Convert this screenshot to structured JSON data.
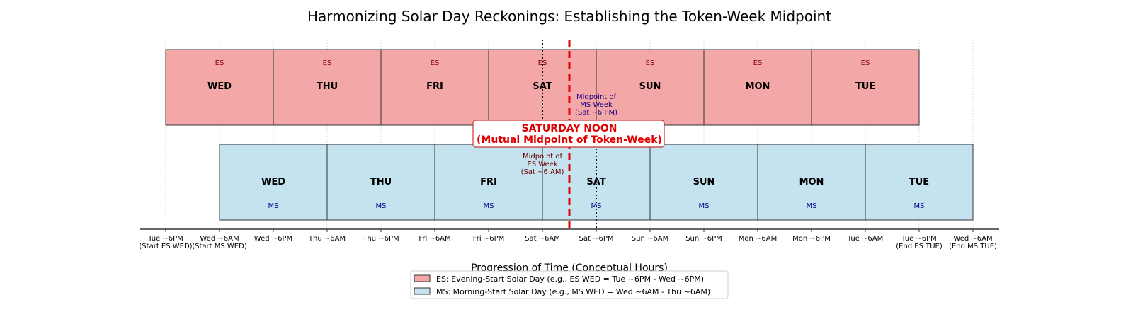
{
  "chart_data": {
    "type": "timeline",
    "title": "Harmonizing Solar Day Reckonings: Establishing the Token-Week Midpoint",
    "xlabel": "Progression of Time (Conceptual Hours)",
    "x_unit": "hours since Tue ~6PM",
    "xlim": [
      0,
      180
    ],
    "ticks": [
      {
        "hour": 0,
        "label": "Tue ~6PM",
        "sublabel": "(Start ES WED)"
      },
      {
        "hour": 12,
        "label": "Wed ~6AM",
        "sublabel": "(Start MS WED)"
      },
      {
        "hour": 24,
        "label": "Wed ~6PM"
      },
      {
        "hour": 36,
        "label": "Thu ~6AM"
      },
      {
        "hour": 48,
        "label": "Thu ~6PM"
      },
      {
        "hour": 60,
        "label": "Fri ~6AM"
      },
      {
        "hour": 72,
        "label": "Fri ~6PM"
      },
      {
        "hour": 84,
        "label": "Sat ~6AM"
      },
      {
        "hour": 96,
        "label": "Sat ~6PM"
      },
      {
        "hour": 108,
        "label": "Sun ~6AM"
      },
      {
        "hour": 120,
        "label": "Sun ~6PM"
      },
      {
        "hour": 132,
        "label": "Mon ~6AM"
      },
      {
        "hour": 144,
        "label": "Mon ~6PM"
      },
      {
        "hour": 156,
        "label": "Tue ~6AM"
      },
      {
        "hour": 168,
        "label": "Tue ~6PM",
        "sublabel": "(End ES TUE)"
      },
      {
        "hour": 180,
        "label": "Wed ~6AM",
        "sublabel": "(End MS TUE)"
      }
    ],
    "series": [
      {
        "name": "ES",
        "tag": "ES",
        "color": "#f4a7a7",
        "tag_color": "#8b0000",
        "start_hour": 0,
        "duration": 24,
        "days": [
          "WED",
          "THU",
          "FRI",
          "SAT",
          "SUN",
          "MON",
          "TUE"
        ]
      },
      {
        "name": "MS",
        "tag": "MS",
        "color": "#c5e3ee",
        "tag_color": "#00008b",
        "start_hour": 12,
        "duration": 24,
        "days": [
          "WED",
          "THU",
          "FRI",
          "SAT",
          "SUN",
          "MON",
          "TUE"
        ]
      }
    ],
    "midpoint": {
      "hour": 90,
      "color": "#e00000",
      "label_line1": "SATURDAY NOON",
      "label_line2": "(Mutual Midpoint of Token-Week)"
    },
    "es_midpoint": {
      "hour": 84,
      "color": "#6b0000",
      "lines": [
        "Midpoint of",
        "ES Week",
        "(Sat ~6 AM)"
      ]
    },
    "ms_midpoint": {
      "hour": 96,
      "color": "#1a0080",
      "lines": [
        "Midpoint of",
        "MS Week",
        "(Sat ~6 PM)"
      ]
    },
    "legend": {
      "placement": "bottom-center",
      "entries": [
        {
          "label": "ES: Evening-Start Solar Day (e.g., ES WED = Tue ~6PM - Wed ~6PM)",
          "color": "#f4a7a7"
        },
        {
          "label": "MS: Morning-Start Solar Day (e.g., MS WED = Wed ~6AM - Thu ~6AM)",
          "color": "#c5e3ee"
        }
      ]
    }
  }
}
